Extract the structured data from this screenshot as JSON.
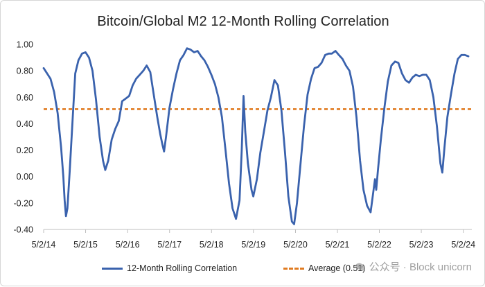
{
  "colors": {
    "series": "#3a62ad",
    "average": "#e07b21",
    "axis": "#bfbfbf"
  },
  "chart_data": {
    "type": "line",
    "title": "Bitcoin/Global M2 12-Month Rolling Correlation",
    "xlabel": "",
    "ylabel": "",
    "ylim": [
      -0.4,
      1.0
    ],
    "yticks": [
      1.0,
      0.8,
      0.6,
      0.4,
      0.2,
      0.0,
      -0.2,
      -0.4
    ],
    "ytick_labels": [
      "1.00",
      "0.80",
      "0.60",
      "0.40",
      "0.20",
      "0.00",
      "-0.20",
      "-0.40"
    ],
    "xlim": [
      "2014-05-02",
      "2024-07-15"
    ],
    "xticks": [
      "2014-05-02",
      "2015-05-02",
      "2016-05-02",
      "2017-05-02",
      "2018-05-02",
      "2019-05-02",
      "2020-05-02",
      "2021-05-02",
      "2022-05-02",
      "2023-05-02",
      "2024-05-02"
    ],
    "xtick_labels": [
      "5/2/14",
      "5/2/15",
      "5/2/16",
      "5/2/17",
      "5/2/18",
      "5/2/19",
      "5/2/20",
      "5/2/21",
      "5/2/22",
      "5/2/23",
      "5/2/24"
    ],
    "grid": false,
    "legend_position": "bottom",
    "series": [
      {
        "name": "12-Month Rolling Correlation",
        "style": "solid",
        "points": [
          [
            "2014-05-02",
            0.82
          ],
          [
            "2014-06-01",
            0.78
          ],
          [
            "2014-07-01",
            0.74
          ],
          [
            "2014-08-01",
            0.64
          ],
          [
            "2014-09-01",
            0.48
          ],
          [
            "2014-10-01",
            0.22
          ],
          [
            "2014-10-20",
            0.0
          ],
          [
            "2014-11-01",
            -0.18
          ],
          [
            "2014-11-12",
            -0.3
          ],
          [
            "2014-11-25",
            -0.24
          ],
          [
            "2014-12-15",
            0.04
          ],
          [
            "2015-01-10",
            0.45
          ],
          [
            "2015-02-01",
            0.78
          ],
          [
            "2015-03-01",
            0.88
          ],
          [
            "2015-04-01",
            0.93
          ],
          [
            "2015-05-01",
            0.94
          ],
          [
            "2015-06-01",
            0.9
          ],
          [
            "2015-07-01",
            0.8
          ],
          [
            "2015-08-01",
            0.58
          ],
          [
            "2015-09-01",
            0.3
          ],
          [
            "2015-10-01",
            0.12
          ],
          [
            "2015-10-20",
            0.05
          ],
          [
            "2015-11-15",
            0.12
          ],
          [
            "2015-12-15",
            0.28
          ],
          [
            "2016-01-15",
            0.36
          ],
          [
            "2016-02-15",
            0.42
          ],
          [
            "2016-03-15",
            0.57
          ],
          [
            "2016-04-15",
            0.59
          ],
          [
            "2016-05-15",
            0.61
          ],
          [
            "2016-06-15",
            0.69
          ],
          [
            "2016-07-15",
            0.74
          ],
          [
            "2016-08-15",
            0.77
          ],
          [
            "2016-09-15",
            0.8
          ],
          [
            "2016-10-15",
            0.84
          ],
          [
            "2016-11-15",
            0.79
          ],
          [
            "2016-12-15",
            0.62
          ],
          [
            "2017-01-15",
            0.45
          ],
          [
            "2017-02-10",
            0.32
          ],
          [
            "2017-03-01",
            0.24
          ],
          [
            "2017-03-15",
            0.19
          ],
          [
            "2017-04-01",
            0.3
          ],
          [
            "2017-05-01",
            0.52
          ],
          [
            "2017-06-01",
            0.66
          ],
          [
            "2017-07-01",
            0.78
          ],
          [
            "2017-08-01",
            0.88
          ],
          [
            "2017-09-01",
            0.92
          ],
          [
            "2017-10-01",
            0.97
          ],
          [
            "2017-11-01",
            0.96
          ],
          [
            "2017-12-01",
            0.94
          ],
          [
            "2018-01-01",
            0.95
          ],
          [
            "2018-02-01",
            0.91
          ],
          [
            "2018-03-01",
            0.88
          ],
          [
            "2018-04-01",
            0.83
          ],
          [
            "2018-05-01",
            0.77
          ],
          [
            "2018-06-01",
            0.7
          ],
          [
            "2018-07-01",
            0.6
          ],
          [
            "2018-08-01",
            0.45
          ],
          [
            "2018-09-01",
            0.2
          ],
          [
            "2018-10-01",
            -0.05
          ],
          [
            "2018-11-01",
            -0.24
          ],
          [
            "2018-12-01",
            -0.32
          ],
          [
            "2019-01-01",
            -0.18
          ],
          [
            "2019-01-20",
            0.2
          ],
          [
            "2019-02-05",
            0.61
          ],
          [
            "2019-02-20",
            0.34
          ],
          [
            "2019-03-15",
            0.1
          ],
          [
            "2019-04-15",
            -0.1
          ],
          [
            "2019-05-01",
            -0.15
          ],
          [
            "2019-06-01",
            -0.02
          ],
          [
            "2019-07-01",
            0.18
          ],
          [
            "2019-08-01",
            0.34
          ],
          [
            "2019-09-01",
            0.5
          ],
          [
            "2019-10-01",
            0.6
          ],
          [
            "2019-11-01",
            0.73
          ],
          [
            "2019-12-01",
            0.69
          ],
          [
            "2020-01-01",
            0.5
          ],
          [
            "2020-02-01",
            0.18
          ],
          [
            "2020-03-01",
            -0.15
          ],
          [
            "2020-04-01",
            -0.34
          ],
          [
            "2020-04-20",
            -0.36
          ],
          [
            "2020-05-15",
            -0.2
          ],
          [
            "2020-06-15",
            0.1
          ],
          [
            "2020-07-15",
            0.38
          ],
          [
            "2020-08-15",
            0.62
          ],
          [
            "2020-09-15",
            0.74
          ],
          [
            "2020-10-15",
            0.82
          ],
          [
            "2020-11-15",
            0.83
          ],
          [
            "2020-12-15",
            0.86
          ],
          [
            "2021-01-15",
            0.92
          ],
          [
            "2021-02-15",
            0.93
          ],
          [
            "2021-03-15",
            0.93
          ],
          [
            "2021-04-15",
            0.95
          ],
          [
            "2021-05-15",
            0.92
          ],
          [
            "2021-06-15",
            0.89
          ],
          [
            "2021-07-15",
            0.84
          ],
          [
            "2021-08-15",
            0.8
          ],
          [
            "2021-09-15",
            0.68
          ],
          [
            "2021-10-15",
            0.45
          ],
          [
            "2021-11-15",
            0.12
          ],
          [
            "2021-12-15",
            -0.1
          ],
          [
            "2022-01-15",
            -0.22
          ],
          [
            "2022-02-15",
            -0.27
          ],
          [
            "2022-03-10",
            -0.12
          ],
          [
            "2022-03-25",
            -0.02
          ],
          [
            "2022-04-05",
            -0.1
          ],
          [
            "2022-04-20",
            0.05
          ],
          [
            "2022-05-15",
            0.28
          ],
          [
            "2022-06-15",
            0.52
          ],
          [
            "2022-07-15",
            0.72
          ],
          [
            "2022-08-15",
            0.84
          ],
          [
            "2022-09-15",
            0.87
          ],
          [
            "2022-10-15",
            0.86
          ],
          [
            "2022-11-15",
            0.78
          ],
          [
            "2022-12-15",
            0.73
          ],
          [
            "2023-01-15",
            0.71
          ],
          [
            "2023-02-15",
            0.75
          ],
          [
            "2023-03-15",
            0.77
          ],
          [
            "2023-04-15",
            0.76
          ],
          [
            "2023-05-15",
            0.77
          ],
          [
            "2023-06-15",
            0.77
          ],
          [
            "2023-07-15",
            0.73
          ],
          [
            "2023-08-15",
            0.6
          ],
          [
            "2023-09-15",
            0.38
          ],
          [
            "2023-10-15",
            0.1
          ],
          [
            "2023-11-01",
            0.03
          ],
          [
            "2023-11-20",
            0.22
          ],
          [
            "2023-12-15",
            0.45
          ],
          [
            "2024-01-15",
            0.62
          ],
          [
            "2024-02-15",
            0.78
          ],
          [
            "2024-03-15",
            0.89
          ],
          [
            "2024-04-15",
            0.92
          ],
          [
            "2024-05-15",
            0.92
          ],
          [
            "2024-06-15",
            0.91
          ]
        ]
      },
      {
        "name": "Average (0.51)",
        "style": "dashed",
        "constant": 0.51
      }
    ]
  },
  "watermark": {
    "text": "公众号 · Block unicorn"
  }
}
